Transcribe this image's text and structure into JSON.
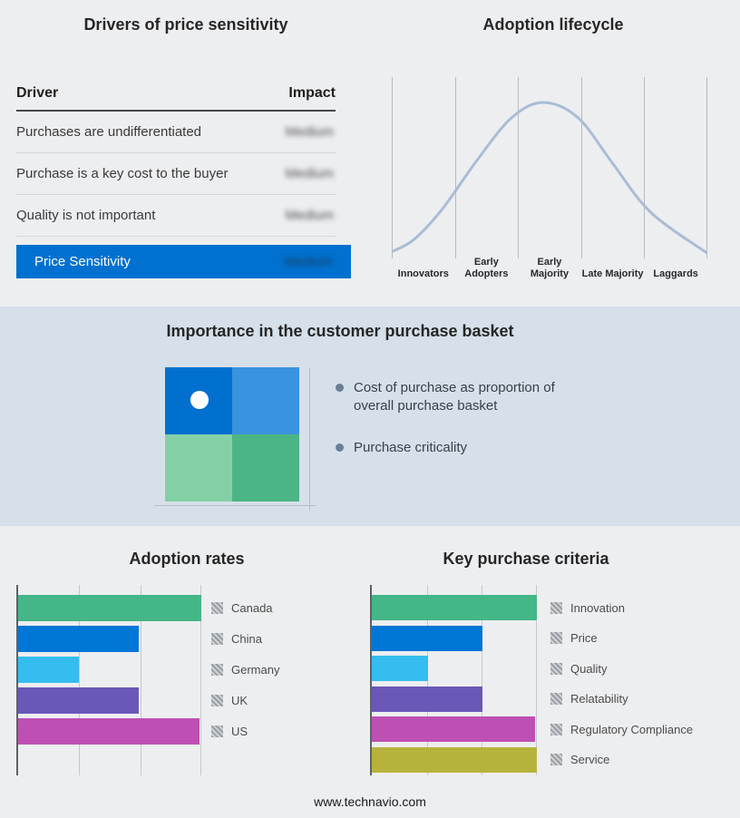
{
  "page": {
    "background": "#edeef0",
    "band_background": "#d6e0ea"
  },
  "drivers_table": {
    "title": "Drivers of price sensitivity",
    "header": {
      "driver": "Driver",
      "impact": "Impact"
    },
    "rows": [
      {
        "driver": "Purchases are undifferentiated",
        "impact": "Medium"
      },
      {
        "driver": "Purchase is a key cost to the buyer",
        "impact": "Medium"
      },
      {
        "driver": "Quality is not important",
        "impact": "Medium"
      }
    ],
    "impact_values_blurred": true,
    "summary": {
      "label": "Price Sensitivity",
      "impact": "Medium",
      "bar_color": "#0071d0"
    }
  },
  "basket": {
    "title": "Importance in the customer purchase basket",
    "bullets": [
      "Cost of purchase as proportion of overall purchase basket",
      "Purchase criticality"
    ],
    "bullet_color": "#6b7e92",
    "quadrant_colors": {
      "top_left": "#0070cf",
      "top_right": "#3a93de",
      "bottom_left": "#84d0a6",
      "bottom_right": "#4cb585"
    },
    "marker": {
      "shape": "white-circle",
      "quadrant": "top_left"
    }
  },
  "chart_data": [
    {
      "id": "adoption_lifecycle",
      "type": "line",
      "title": "Adoption lifecycle",
      "categories": [
        "Innovators",
        "Early Adopters",
        "Early Majority",
        "Late Majority",
        "Laggards"
      ],
      "x_normalized": [
        0,
        0.07,
        0.16,
        0.27,
        0.38,
        0.48,
        0.59,
        0.7,
        0.82,
        1.0
      ],
      "y_normalized": [
        0.02,
        0.1,
        0.3,
        0.62,
        0.9,
        1.0,
        0.9,
        0.6,
        0.28,
        0.01
      ],
      "line_color": "#a9bdd4",
      "grid": true,
      "note": "Qualitative bell curve over five adopter stages; no numeric axes shown"
    },
    {
      "id": "adoption_rates",
      "type": "bar",
      "orientation": "horizontal",
      "title": "Adoption rates",
      "categories": [
        "Canada",
        "China",
        "Germany",
        "UK",
        "US"
      ],
      "values": [
        100,
        66,
        33,
        66,
        99
      ],
      "value_unit": "relative bar length (%); no numeric axis labels shown",
      "colors": [
        "#44b687",
        "#0076d6",
        "#35bdf0",
        "#6a57b8",
        "#bf50b3"
      ],
      "grid": true,
      "legend_position": "right"
    },
    {
      "id": "key_purchase_criteria",
      "type": "bar",
      "orientation": "horizontal",
      "title": "Key purchase criteria",
      "categories": [
        "Innovation",
        "Price",
        "Quality",
        "Relatability",
        "Regulatory Compliance",
        "Service"
      ],
      "values": [
        100,
        67,
        34,
        67,
        99,
        100
      ],
      "value_unit": "relative bar length (%); no numeric axis labels shown",
      "colors": [
        "#44b687",
        "#0076d6",
        "#35bdf0",
        "#6a57b8",
        "#bf50b3",
        "#b6b33c"
      ],
      "grid": true,
      "legend_position": "right"
    }
  ],
  "footer": {
    "url": "www.technavio.com"
  }
}
